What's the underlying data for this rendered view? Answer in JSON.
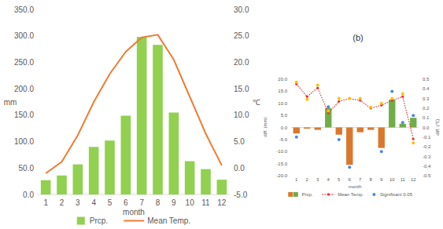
{
  "chart_data": [
    {
      "type": "bar",
      "categories": [
        "1",
        "2",
        "3",
        "4",
        "5",
        "6",
        "7",
        "8",
        "9",
        "10",
        "11",
        "12"
      ],
      "x_label": "month",
      "y_label": "mm",
      "y2_label": "℃",
      "series": [
        {
          "name": "Prcp.",
          "type": "bar",
          "color": "#92d050",
          "values": [
            27,
            36,
            57,
            90,
            102,
            149,
            298,
            283,
            155,
            63,
            48,
            28
          ]
        },
        {
          "name": "Mean Temp.",
          "type": "line",
          "color": "#ed7d31",
          "axis": "y2",
          "values": [
            -1.0,
            1.2,
            6.2,
            12.5,
            17.8,
            22.0,
            24.7,
            25.2,
            20.5,
            13.5,
            6.5,
            0.5
          ]
        }
      ],
      "ylim": [
        0,
        350
      ],
      "yticks": [
        {
          "value": 0,
          "label": "0.0"
        },
        {
          "value": 50,
          "label": "50.0"
        },
        {
          "value": 100,
          "label": "100.0"
        },
        {
          "value": 150,
          "label": "150.0"
        },
        {
          "value": 200,
          "label": "200.0"
        },
        {
          "value": 250,
          "label": "250.0"
        },
        {
          "value": 300,
          "label": "300.0"
        },
        {
          "value": 350,
          "label": "350.0"
        }
      ],
      "y2lim": [
        -5,
        30
      ],
      "y2ticks": [
        {
          "value": -5,
          "label": "-5.0"
        },
        {
          "value": 0,
          "label": "0.0"
        },
        {
          "value": 5,
          "label": "5.0"
        },
        {
          "value": 10,
          "label": "10.0"
        },
        {
          "value": 15,
          "label": "15.0"
        },
        {
          "value": 20,
          "label": "20.0"
        },
        {
          "value": 25,
          "label": "25.0"
        },
        {
          "value": 30,
          "label": "30.0"
        }
      ],
      "grid": false,
      "legend": "bottom"
    },
    {
      "type": "bar",
      "title": "(b)",
      "categories": [
        "1",
        "2",
        "3",
        "4",
        "5",
        "6",
        "7",
        "8",
        "9",
        "10",
        "11",
        "12"
      ],
      "x_label": "month",
      "y_label": "diff. (mm)",
      "y2_label": "diff. (℃)",
      "series": [
        {
          "name": "Prcp.",
          "type": "bar",
          "colors": [
            "#d9782d",
            "#d9782d",
            "#d9782d",
            "#70ad47",
            "#d9782d",
            "#d9782d",
            "#d9782d",
            "#d9782d",
            "#d9782d",
            "#70ad47",
            "#70ad47",
            "#70ad47"
          ],
          "values": [
            -2.5,
            -0.5,
            -1.0,
            8.0,
            -3.0,
            -15.5,
            -2.0,
            -1.0,
            -8.5,
            11.5,
            1.5,
            4.0
          ]
        },
        {
          "name": "Mean Temp.",
          "type": "line",
          "color": "#e8312b",
          "axis": "y2",
          "line_style": "dotted",
          "marker": "circle",
          "values": [
            0.45,
            0.32,
            0.41,
            0.15,
            0.27,
            0.3,
            0.28,
            0.2,
            0.23,
            0.28,
            0.32,
            -0.12
          ]
        },
        {
          "name": "Significant 0.05",
          "type": "scatter",
          "color": "#4a86e8",
          "marker": "circle",
          "values": [
            -4.0,
            null,
            null,
            8.5,
            -5.0,
            -16.5,
            null,
            null,
            -10.0,
            15.0,
            2.0,
            5.0
          ]
        },
        {
          "name": "Significant 0.05",
          "type": "scatter",
          "color": "#ffc000",
          "axis": "y2",
          "marker": "circle",
          "values": [
            0.47,
            0.29,
            0.44,
            0.17,
            0.3,
            0.3,
            0.3,
            0.21,
            0.25,
            0.3,
            0.35,
            -0.16
          ]
        }
      ],
      "ylim": [
        -20,
        20
      ],
      "yticks": [
        {
          "value": -20,
          "label": "-20.0"
        },
        {
          "value": -15,
          "label": "-15.0"
        },
        {
          "value": -10,
          "label": "-10.0"
        },
        {
          "value": -5,
          "label": "-5.0"
        },
        {
          "value": 0,
          "label": "0.0"
        },
        {
          "value": 5,
          "label": "5.0"
        },
        {
          "value": 10,
          "label": "10.0"
        },
        {
          "value": 15,
          "label": "15.0"
        },
        {
          "value": 20,
          "label": "20.0"
        }
      ],
      "y2lim": [
        -0.5,
        0.5
      ],
      "y2ticks": [
        -0.5,
        -0.4,
        -0.3,
        -0.2,
        -0.1,
        {
          "value": 0,
          "label": "0.0"
        },
        0.1,
        0.2,
        0.3,
        0.4,
        0.5
      ],
      "grid": false,
      "legend": "bottom"
    }
  ]
}
